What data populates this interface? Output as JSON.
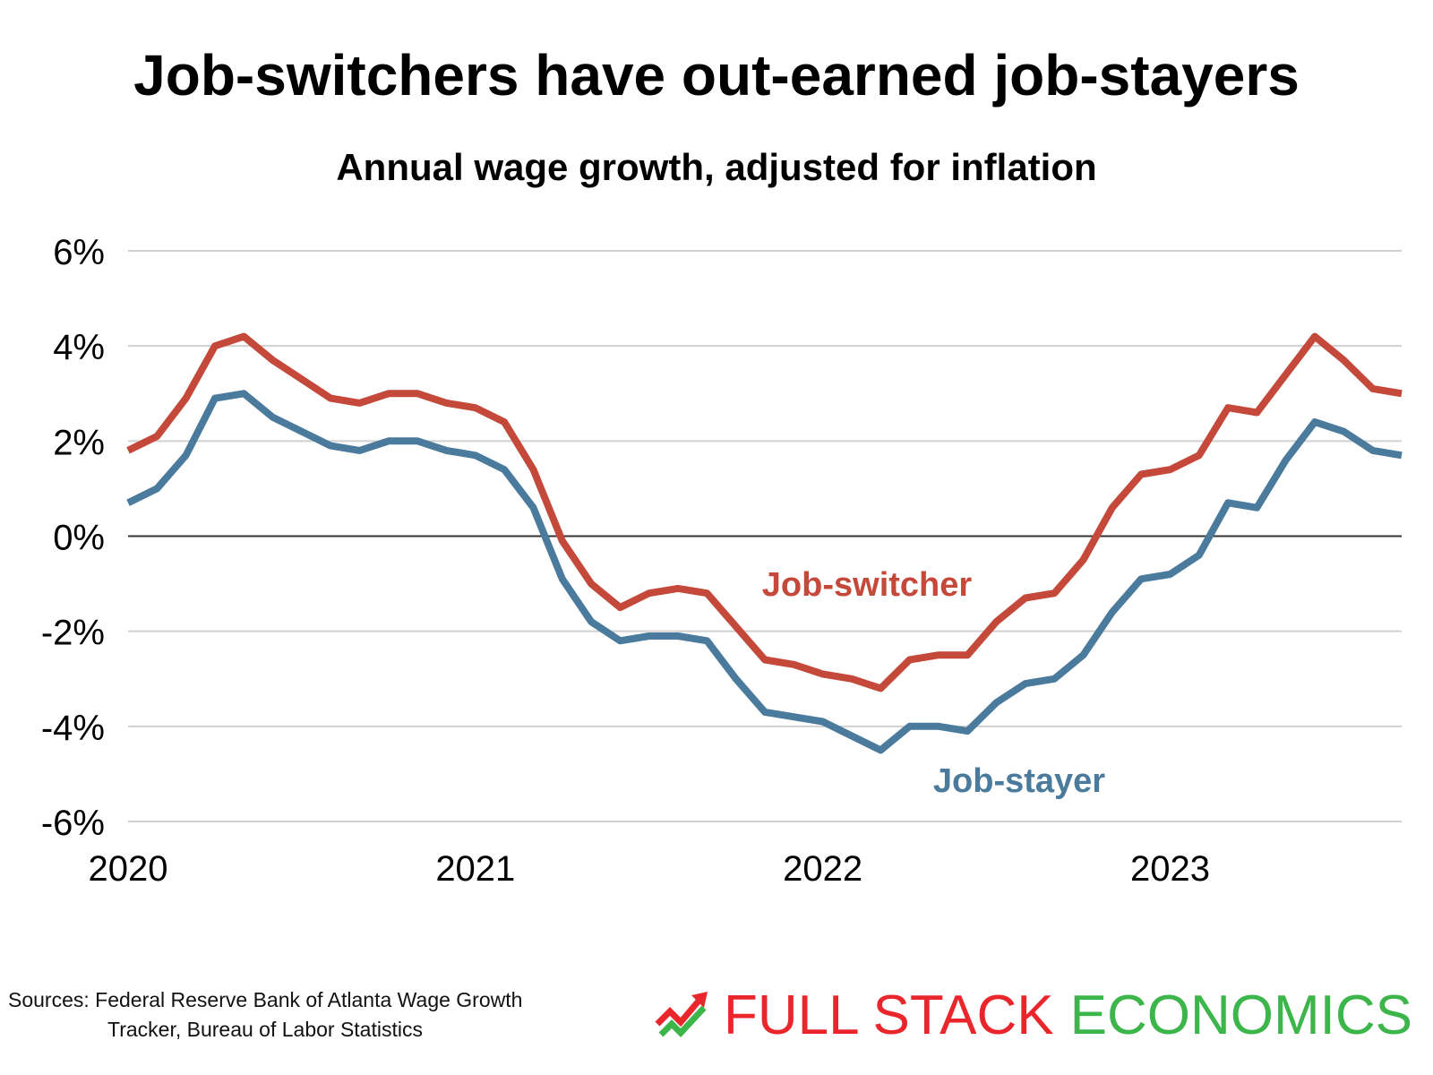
{
  "title": "Job-switchers have out-earned job-stayers",
  "subtitle": "Annual wage growth, adjusted for inflation",
  "source": {
    "line1": "Sources: Federal Reserve Bank of Atlanta Wage Growth",
    "line2": "Tracker, Bureau of Labor Statistics"
  },
  "brand": {
    "word1": "FULL STACK",
    "word2": "ECONOMICS",
    "logo_icon": "trend-arrows-icon"
  },
  "colors": {
    "switcher": "#c4493a",
    "stayer": "#4a7a9c",
    "grid": "#d0d0d0",
    "zero_line": "#333333"
  },
  "chart_data": {
    "type": "line",
    "x_unit": "month",
    "x_start": "2020-01",
    "x_ticks": [
      "2020",
      "2021",
      "2022",
      "2023"
    ],
    "y_ticks": [
      "6%",
      "4%",
      "2%",
      "0%",
      "-2%",
      "-4%",
      "-6%"
    ],
    "ylim": [
      -6,
      6
    ],
    "grid": true,
    "legend": "inline labels",
    "series": [
      {
        "name": "Job-switcher",
        "color": "#c4493a",
        "values": [
          1.8,
          2.1,
          2.9,
          4.0,
          4.2,
          3.7,
          3.3,
          2.9,
          2.8,
          3.0,
          3.0,
          2.8,
          2.7,
          2.4,
          1.4,
          -0.1,
          -1.0,
          -1.5,
          -1.2,
          -1.1,
          -1.2,
          -1.9,
          -2.6,
          -2.7,
          -2.9,
          -3.0,
          -3.2,
          -2.6,
          -2.5,
          -2.5,
          -1.8,
          -1.3,
          -1.2,
          -0.5,
          0.6,
          1.3,
          1.4,
          1.7,
          2.7,
          2.6,
          3.4,
          4.2,
          3.7,
          3.1,
          3.0
        ]
      },
      {
        "name": "Job-stayer",
        "color": "#4a7a9c",
        "values": [
          0.7,
          1.0,
          1.7,
          2.9,
          3.0,
          2.5,
          2.2,
          1.9,
          1.8,
          2.0,
          2.0,
          1.8,
          1.7,
          1.4,
          0.6,
          -0.9,
          -1.8,
          -2.2,
          -2.1,
          -2.1,
          -2.2,
          -3.0,
          -3.7,
          -3.8,
          -3.9,
          -4.2,
          -4.5,
          -4.0,
          -4.0,
          -4.1,
          -3.5,
          -3.1,
          -3.0,
          -2.5,
          -1.6,
          -0.9,
          -0.8,
          -0.4,
          0.7,
          0.6,
          1.6,
          2.4,
          2.2,
          1.8,
          1.7
        ]
      }
    ]
  }
}
